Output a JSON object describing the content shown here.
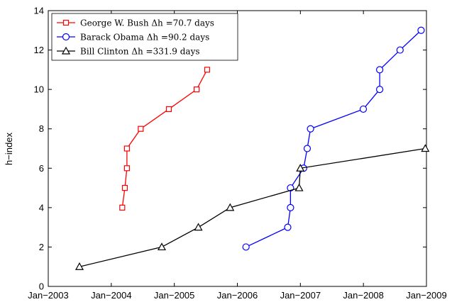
{
  "chart_data": {
    "type": "line",
    "title": "",
    "xlabel": "",
    "ylabel": "h−index",
    "x_ticks": [
      "Jan−2003",
      "Jan−2004",
      "Jan−2005",
      "Jan−2006",
      "Jan−2007",
      "Jan−2008",
      "Jan−2009"
    ],
    "xlim": [
      "2003-01-01",
      "2009-01-01"
    ],
    "ylim": [
      0,
      14
    ],
    "y_ticks": [
      0,
      2,
      4,
      6,
      8,
      10,
      12,
      14
    ],
    "grid": false,
    "legend_position": "top-left",
    "series": [
      {
        "name": "George W. Bush Δh =70.7 days",
        "color": "#ff0000",
        "marker": "square",
        "points": [
          {
            "x": "2004-03-05",
            "y": 4
          },
          {
            "x": "2004-03-20",
            "y": 5
          },
          {
            "x": "2004-04-01",
            "y": 6
          },
          {
            "x": "2004-04-01",
            "y": 7
          },
          {
            "x": "2004-06-20",
            "y": 8
          },
          {
            "x": "2004-11-30",
            "y": 9
          },
          {
            "x": "2005-05-10",
            "y": 10
          },
          {
            "x": "2005-07-10",
            "y": 11
          }
        ]
      },
      {
        "name": "Barack Obama Δh =90.2 days",
        "color": "#0000ff",
        "marker": "circle",
        "points": [
          {
            "x": "2006-02-20",
            "y": 2
          },
          {
            "x": "2006-10-20",
            "y": 3
          },
          {
            "x": "2006-11-05",
            "y": 4
          },
          {
            "x": "2006-11-05",
            "y": 5
          },
          {
            "x": "2007-01-20",
            "y": 6
          },
          {
            "x": "2007-02-10",
            "y": 7
          },
          {
            "x": "2007-03-01",
            "y": 8
          },
          {
            "x": "2008-01-01",
            "y": 9
          },
          {
            "x": "2008-04-05",
            "y": 10
          },
          {
            "x": "2008-04-05",
            "y": 11
          },
          {
            "x": "2008-08-01",
            "y": 12
          },
          {
            "x": "2008-12-01",
            "y": 13
          }
        ]
      },
      {
        "name": "Bill Clinton Δh =331.9 days",
        "color": "#000000",
        "marker": "triangle",
        "points": [
          {
            "x": "2003-07-01",
            "y": 1
          },
          {
            "x": "2004-10-20",
            "y": 2
          },
          {
            "x": "2005-05-20",
            "y": 3
          },
          {
            "x": "2005-11-20",
            "y": 4
          },
          {
            "x": "2006-12-25",
            "y": 5
          },
          {
            "x": "2007-01-01",
            "y": 6
          },
          {
            "x": "2008-12-25",
            "y": 7
          }
        ]
      }
    ]
  }
}
